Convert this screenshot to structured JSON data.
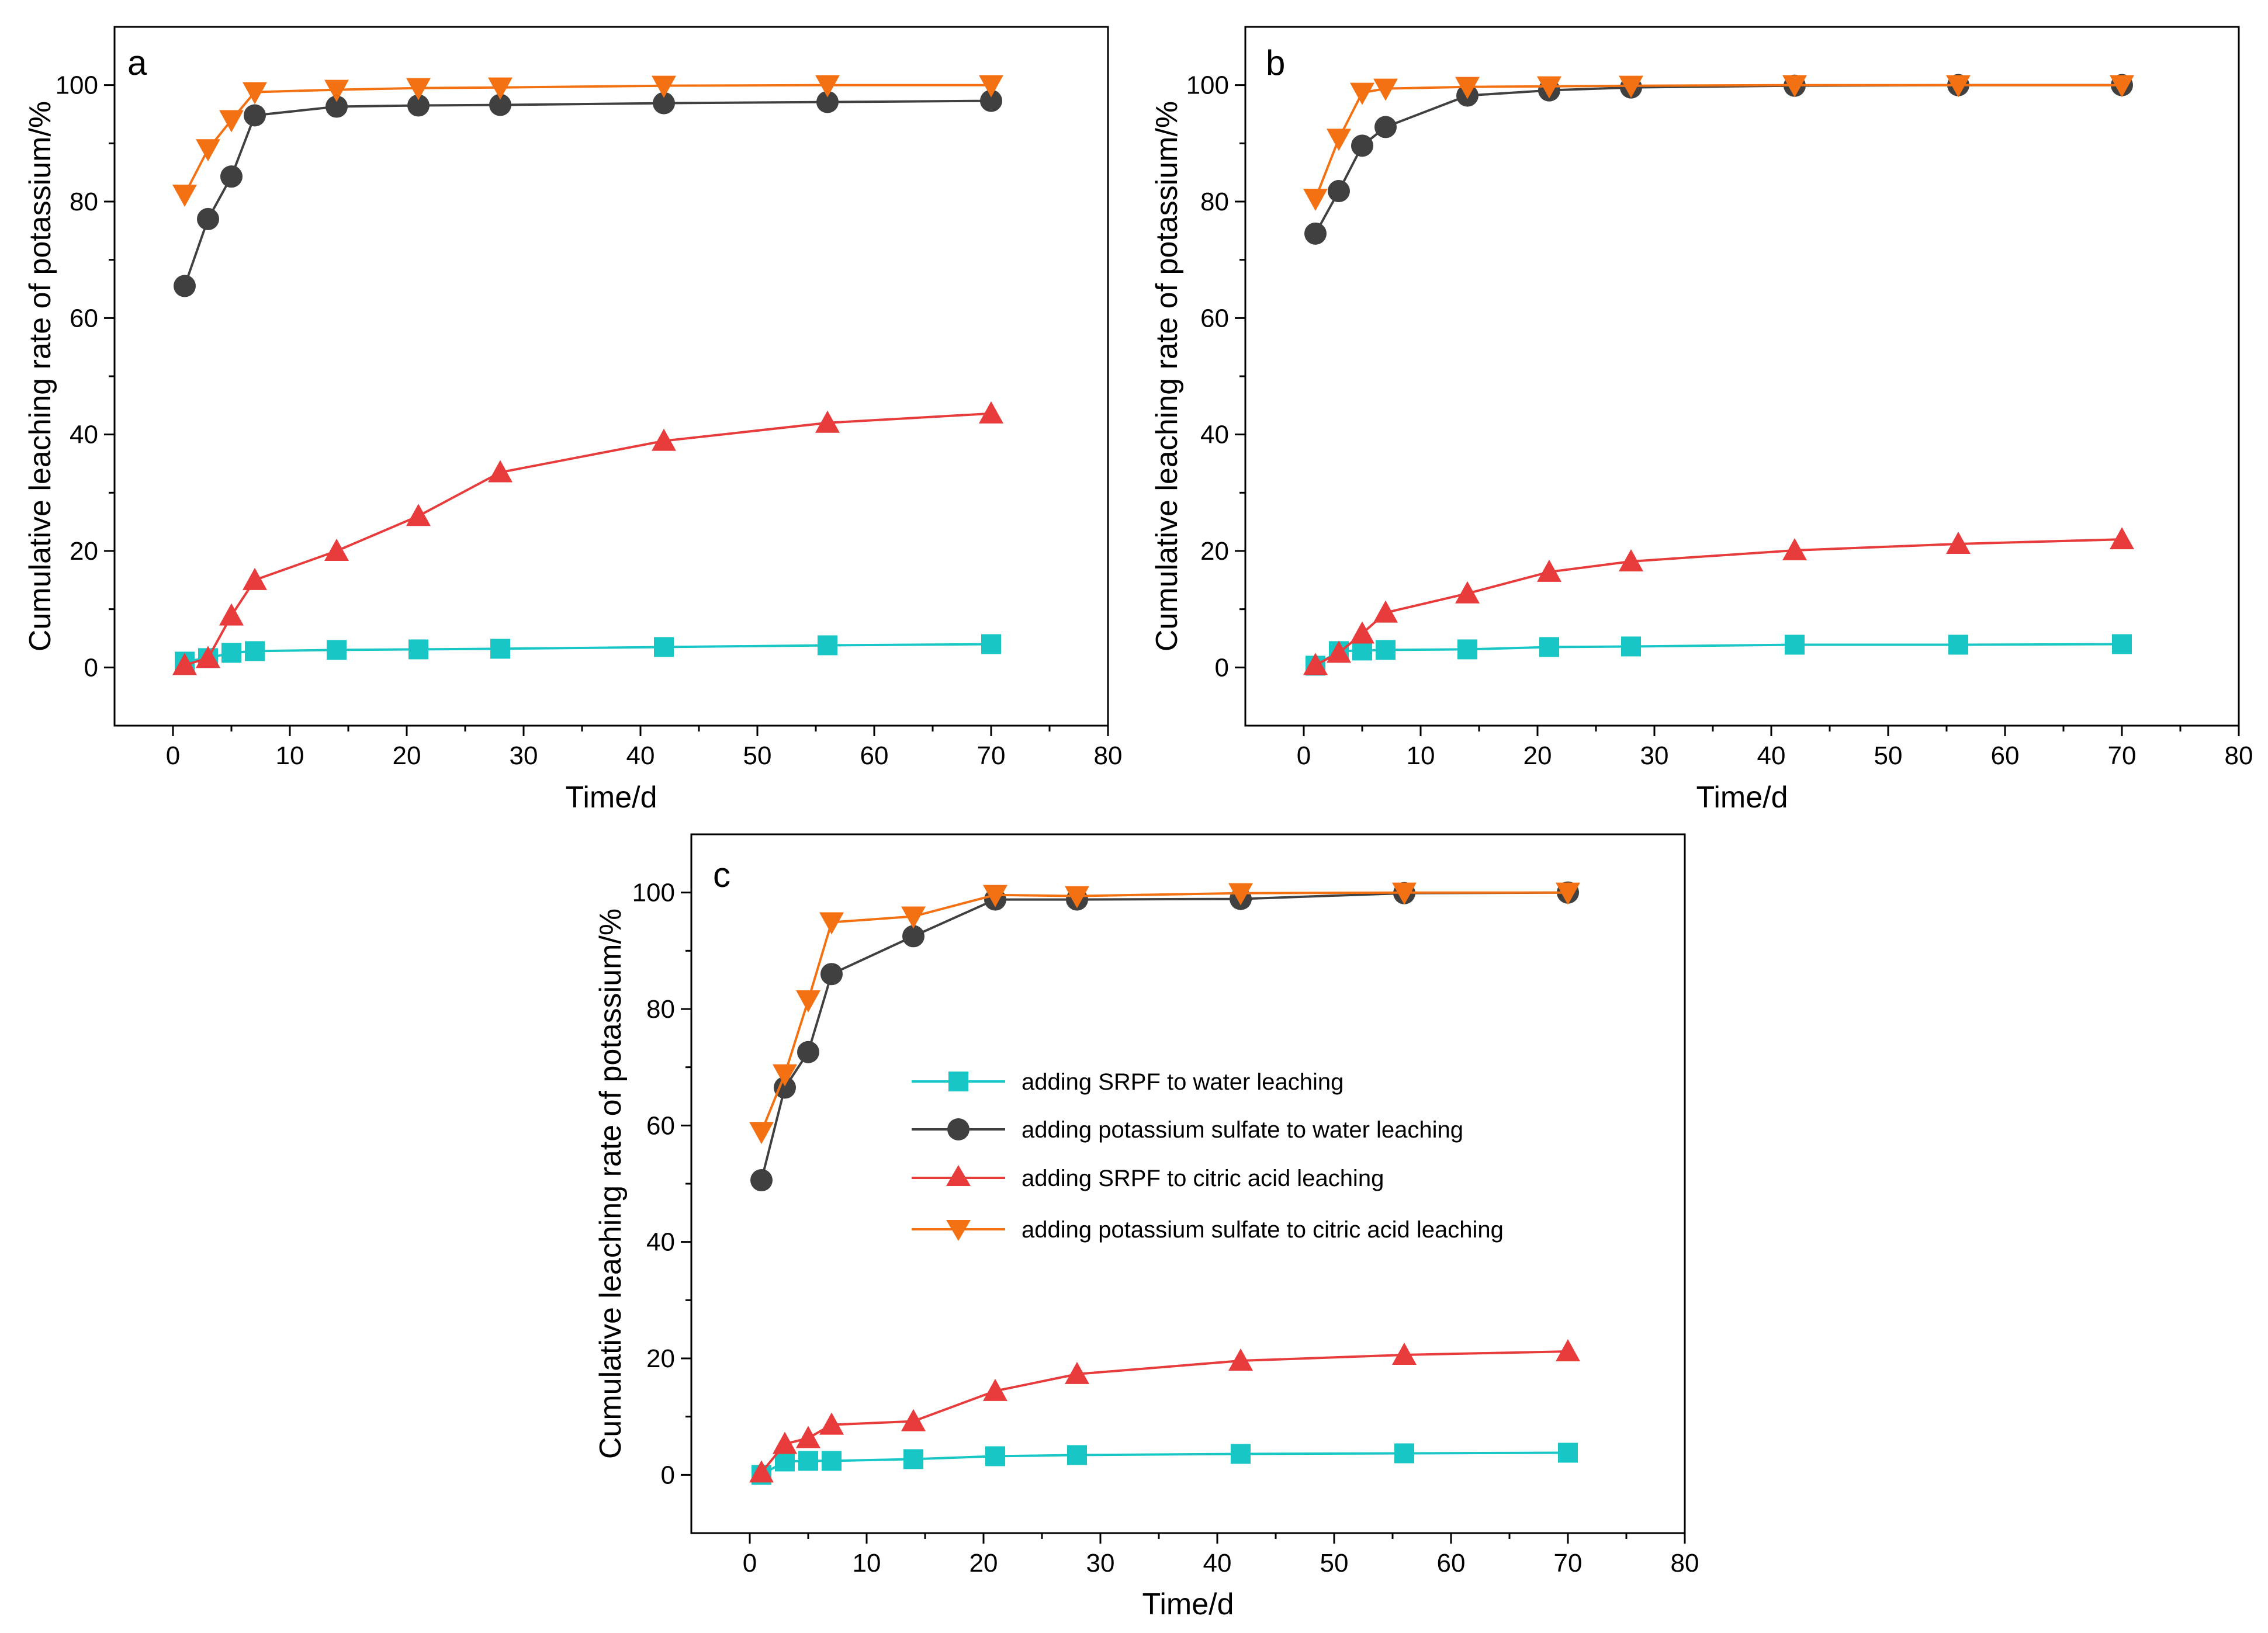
{
  "colors": {
    "water_srpf": "#18c6c6",
    "water_k2so4": "#404040",
    "citric_srpf": "#e83b3b",
    "citric_k2so4": "#f47113"
  },
  "legend": [
    {
      "series": "adding SRPF to water leaching",
      "marker": "square",
      "color": "#18c6c6"
    },
    {
      "series": "adding potassium sulfate to water leaching",
      "marker": "circle",
      "color": "#404040"
    },
    {
      "series": "adding SRPF to citric acid leaching",
      "marker": "triangle-up",
      "color": "#e83b3b"
    },
    {
      "series": "adding potassium sulfate to citric acid leaching",
      "marker": "triangle-down",
      "color": "#f47113"
    }
  ],
  "chart_data": [
    {
      "panel": "a",
      "type": "line",
      "xlabel": "Time/d",
      "ylabel": "Cumulative leaching rate of potassium/%",
      "xlim": [
        -5,
        80
      ],
      "ylim": [
        -10,
        110
      ],
      "xticks": [
        0,
        10,
        20,
        30,
        40,
        50,
        60,
        70,
        80
      ],
      "yticks": [
        0,
        20,
        40,
        60,
        80,
        100
      ],
      "grid": false,
      "x": [
        1,
        3,
        5,
        7,
        14,
        21,
        28,
        42,
        56,
        70
      ],
      "series": [
        {
          "name": "adding SRPF to water leaching",
          "marker": "square",
          "color": "#18c6c6",
          "values": [
            1.0,
            1.6,
            2.5,
            2.8,
            3.0,
            3.1,
            3.2,
            3.5,
            3.8,
            4.0
          ]
        },
        {
          "name": "adding potassium sulfate to water leaching",
          "marker": "circle",
          "color": "#404040",
          "values": [
            65.5,
            77.0,
            84.3,
            94.8,
            96.3,
            96.5,
            96.6,
            96.9,
            97.1,
            97.3
          ]
        },
        {
          "name": "adding SRPF to citric acid leaching",
          "marker": "triangle-up",
          "color": "#e83b3b",
          "values": [
            0.4,
            1.6,
            8.9,
            15.0,
            20.0,
            26.0,
            33.5,
            38.9,
            42.0,
            43.6
          ]
        },
        {
          "name": "adding potassium sulfate to citric acid leaching",
          "marker": "triangle-down",
          "color": "#f47113",
          "values": [
            81.2,
            89.0,
            94.0,
            98.8,
            99.2,
            99.5,
            99.6,
            99.9,
            100.0,
            100.0
          ]
        }
      ]
    },
    {
      "panel": "b",
      "type": "line",
      "xlabel": "Time/d",
      "ylabel": "Cumulative leaching rate of potassium/%",
      "xlim": [
        -5,
        80
      ],
      "ylim": [
        -10,
        110
      ],
      "xticks": [
        0,
        10,
        20,
        30,
        40,
        50,
        60,
        70,
        80
      ],
      "yticks": [
        0,
        20,
        40,
        60,
        80,
        100
      ],
      "grid": false,
      "x": [
        1,
        3,
        5,
        7,
        14,
        21,
        28,
        42,
        56,
        70
      ],
      "series": [
        {
          "name": "adding SRPF to water leaching",
          "marker": "square",
          "color": "#18c6c6",
          "values": [
            0.3,
            2.8,
            2.9,
            3.0,
            3.1,
            3.5,
            3.6,
            3.9,
            3.9,
            4.0
          ]
        },
        {
          "name": "adding potassium sulfate to water leaching",
          "marker": "circle",
          "color": "#404040",
          "values": [
            74.5,
            81.8,
            89.6,
            92.8,
            98.2,
            99.1,
            99.6,
            99.9,
            100.0,
            100.0
          ]
        },
        {
          "name": "adding SRPF to citric acid leaching",
          "marker": "triangle-up",
          "color": "#e83b3b",
          "values": [
            0.4,
            2.5,
            5.8,
            9.4,
            12.7,
            16.4,
            18.2,
            20.1,
            21.2,
            22.0
          ]
        },
        {
          "name": "adding potassium sulfate to citric acid leaching",
          "marker": "triangle-down",
          "color": "#f47113",
          "values": [
            80.5,
            90.8,
            98.7,
            99.4,
            99.7,
            99.8,
            99.9,
            100.0,
            100.0,
            100.0
          ]
        }
      ]
    },
    {
      "panel": "c",
      "type": "line",
      "xlabel": "Time/d",
      "ylabel": "Cumulative leaching rate of potassium/%",
      "xlim": [
        -5,
        80
      ],
      "ylim": [
        -10,
        110
      ],
      "xticks": [
        0,
        10,
        20,
        30,
        40,
        50,
        60,
        70,
        80
      ],
      "yticks": [
        0,
        20,
        40,
        60,
        80,
        100
      ],
      "grid": false,
      "legend_position": "center",
      "x": [
        1,
        3,
        5,
        7,
        14,
        21,
        28,
        42,
        56,
        70
      ],
      "series": [
        {
          "name": "adding SRPF to water leaching",
          "marker": "square",
          "color": "#18c6c6",
          "values": [
            0.0,
            2.3,
            2.4,
            2.4,
            2.7,
            3.2,
            3.4,
            3.6,
            3.7,
            3.8
          ]
        },
        {
          "name": "adding potassium sulfate to water leaching",
          "marker": "circle",
          "color": "#404040",
          "values": [
            50.6,
            66.5,
            72.6,
            86.0,
            92.5,
            98.8,
            98.8,
            98.9,
            99.9,
            100.0
          ]
        },
        {
          "name": "adding SRPF to citric acid leaching",
          "marker": "triangle-up",
          "color": "#e83b3b",
          "values": [
            0.4,
            5.3,
            6.3,
            8.6,
            9.2,
            14.4,
            17.3,
            19.6,
            20.6,
            21.2
          ]
        },
        {
          "name": "adding potassium sulfate to citric acid leaching",
          "marker": "triangle-down",
          "color": "#f47113",
          "values": [
            58.9,
            68.8,
            81.5,
            94.9,
            95.9,
            99.6,
            99.4,
            99.9,
            100.0,
            100.0
          ]
        }
      ]
    }
  ]
}
